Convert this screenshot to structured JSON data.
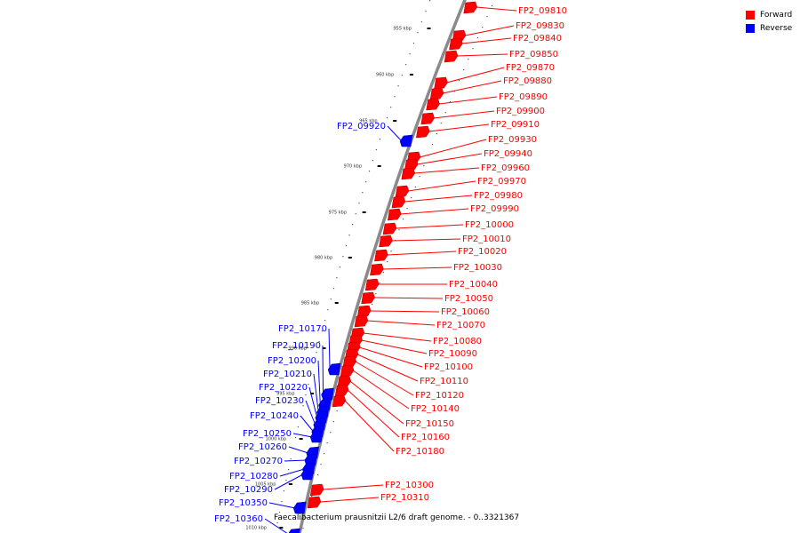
{
  "caption": "Faecalibacterium prausnitzii L2/6 draft genome. - 0..3321367",
  "legend": [
    {
      "label": "Forward",
      "color": "#ff0000"
    },
    {
      "label": "Reverse",
      "color": "#0000ff"
    }
  ],
  "ticks": [
    "955 kbp",
    "960 kbp",
    "965 kbp",
    "970 kbp",
    "975 kbp",
    "980 kbp",
    "985 kbp",
    "990 kbp",
    "995 kbp",
    "1000 kbp",
    "1005 kbp",
    "1010 kbp"
  ],
  "forward_genes": [
    "FP2_09810",
    "FP2_09830",
    "FP2_09840",
    "FP2_09850",
    "FP2_09870",
    "FP2_09880",
    "FP2_09890",
    "FP2_09900",
    "FP2_09910",
    "FP2_09930",
    "FP2_09940",
    "FP2_09960",
    "FP2_09970",
    "FP2_09980",
    "FP2_09990",
    "FP2_10000",
    "FP2_10010",
    "FP2_10020",
    "FP2_10030",
    "FP2_10040",
    "FP2_10050",
    "FP2_10060",
    "FP2_10070",
    "FP2_10080",
    "FP2_10090",
    "FP2_10100",
    "FP2_10110",
    "FP2_10120",
    "FP2_10140",
    "FP2_10150",
    "FP2_10160",
    "FP2_10180",
    "FP2_10300",
    "FP2_10310"
  ],
  "reverse_genes": [
    "FP2_09920",
    "FP2_10170",
    "FP2_10190",
    "FP2_10200",
    "FP2_10210",
    "FP2_10220",
    "FP2_10230",
    "FP2_10240",
    "FP2_10250",
    "FP2_10260",
    "FP2_10270",
    "FP2_10280",
    "FP2_10290",
    "FP2_10350",
    "FP2_10360"
  ]
}
